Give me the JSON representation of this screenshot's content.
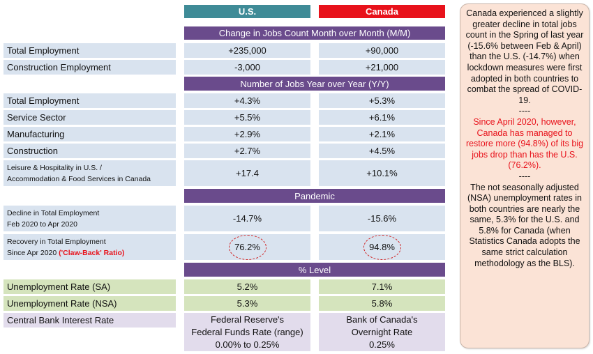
{
  "headers": {
    "us": "U.S.",
    "canada": "Canada"
  },
  "sections": {
    "mom": "Change in Jobs Count Month over Month (M/M)",
    "yoy": "Number of Jobs Year over Year (Y/Y)",
    "pandemic": "Pandemic",
    "level": "% Level"
  },
  "rows": {
    "mom_total": {
      "label": "Total Employment",
      "us": "+235,000",
      "ca": "+90,000"
    },
    "mom_construction": {
      "label": "Construction Employment",
      "us": "-3,000",
      "ca": "+21,000"
    },
    "yoy_total": {
      "label": "Total Employment",
      "us": "+4.3%",
      "ca": "+5.3%"
    },
    "yoy_service": {
      "label": "Service Sector",
      "us": "+5.5%",
      "ca": "+6.1%"
    },
    "yoy_manufacturing": {
      "label": "Manufacturing",
      "us": "+2.9%",
      "ca": "+2.1%"
    },
    "yoy_construction": {
      "label": "Construction",
      "us": "+2.7%",
      "ca": "+4.5%"
    },
    "yoy_leisure": {
      "label_1": "Leisure & Hospitality in U.S. /",
      "label_2": "Accommodation & Food Services in Canada",
      "us": "+17.4",
      "ca": "+10.1%"
    },
    "decline": {
      "label_1": "Decline in Total Employment",
      "label_2": "Feb 2020 to Apr 2020",
      "us": "-14.7%",
      "ca": "-15.6%"
    },
    "recovery": {
      "label_1": "Recovery in Total Employment",
      "label_2": "Since Apr 2020 ",
      "label_red": "('Claw-Back' Ratio)",
      "us": "76.2%",
      "ca": "94.8%"
    },
    "unemp_sa": {
      "label": "Unemployment Rate (SA)",
      "us": "5.2%",
      "ca": "7.1%"
    },
    "unemp_nsa": {
      "label": "Unemployment Rate (NSA)",
      "us": "5.3%",
      "ca": "5.8%"
    },
    "interest": {
      "label": "Central Bank Interest Rate",
      "us_1": "Federal Reserve's",
      "us_2": "Federal Funds Rate (range)",
      "us_3": "0.00% to 0.25%",
      "ca_1": "Bank of Canada's",
      "ca_2": "Overnight Rate",
      "ca_3": "0.25%"
    }
  },
  "note": {
    "p1": "Canada experienced a slightly greater decline in total jobs count in the Spring of last year (-15.6% between Feb & April) than the U.S. (-14.7%) when lockdown measures were first adopted in both countries to combat the spread of COVID-19.",
    "sep1": "----",
    "p2": "Since April 2020, however, Canada has managed to restore more (94.8%) of its big jobs drop than has the U.S. (76.2%).",
    "sep2": "----",
    "p3": "The not seasonally adjusted (NSA) unemployment rates in both countries are nearly the same, 5.3% for the U.S. and 5.8% for Canada (when Statistics Canada adopts the same strict calculation methodology as the BLS)."
  },
  "colors": {
    "us": "#3f8b97",
    "canada": "#e8121b",
    "band": "#6a4b8c",
    "row": "#d9e3ef",
    "green": "#d5e4bd",
    "lavender": "#e2dcec",
    "note_bg": "#fbe3d6"
  }
}
